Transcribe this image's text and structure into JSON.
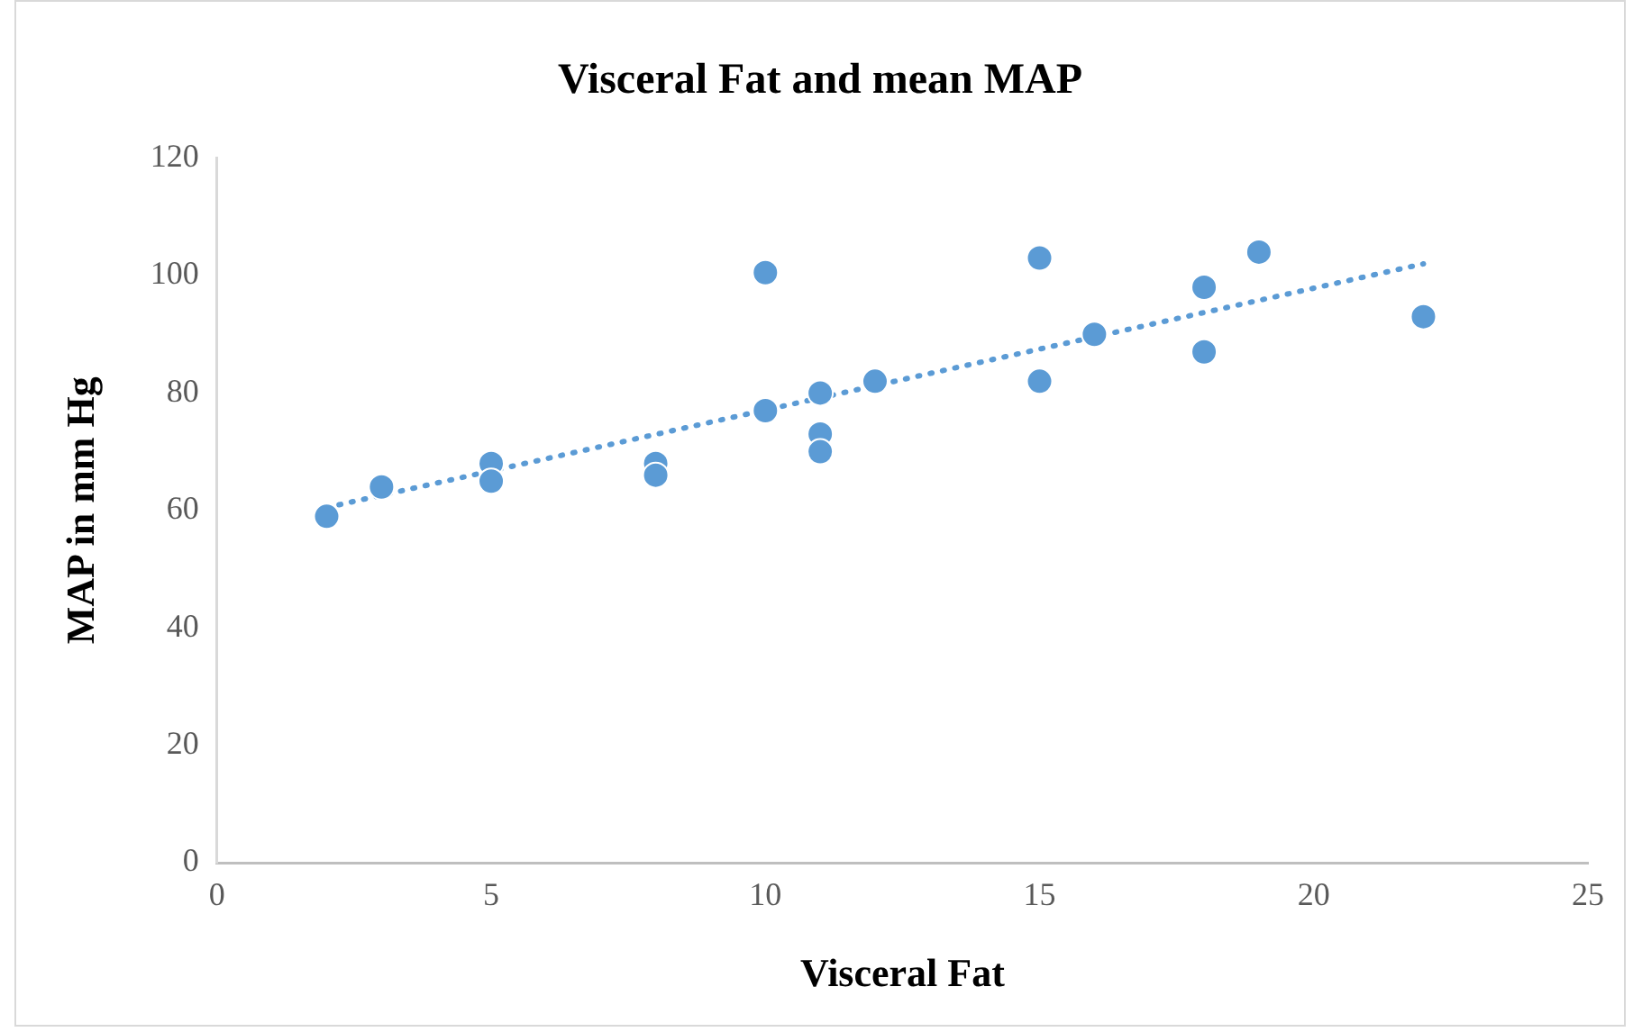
{
  "chart_data": {
    "type": "scatter",
    "title": "Visceral Fat and mean MAP",
    "xlabel": "Visceral Fat",
    "ylabel": "MAP in mm Hg",
    "xlim": [
      0,
      25
    ],
    "xticks": [
      0,
      5,
      10,
      15,
      20,
      25
    ],
    "ylim": [
      0,
      120
    ],
    "yticks": [
      0,
      20,
      40,
      60,
      80,
      100,
      120
    ],
    "grid": false,
    "legend": false,
    "marker": "circle",
    "series": [
      {
        "color": "#5b9bd5",
        "x": [
          2,
          3,
          5,
          5,
          8,
          8,
          10,
          10,
          11,
          11,
          11,
          12,
          15,
          15,
          16,
          18,
          18,
          19,
          22
        ],
        "values": [
          59,
          64,
          68,
          65,
          68,
          66,
          100.5,
          77,
          80,
          73,
          70,
          82,
          103,
          82,
          90,
          98,
          87,
          104,
          93
        ]
      },
      {
        "type": "line",
        "color": "#5b9bd5",
        "line_style": "dotted",
        "marker": "none",
        "x": [
          2,
          22
        ],
        "values": [
          60.5,
          102
        ]
      }
    ]
  }
}
